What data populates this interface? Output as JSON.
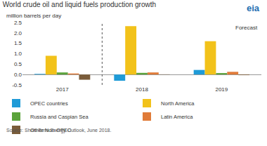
{
  "chart_data": {
    "type": "bar",
    "title": "World crude oil and liquid fuels production growth",
    "subtitle": "million barrels per day",
    "annotations": [
      "Forecast",
      "Source: Short-Term Energy Outlook, June 2018.",
      "eia"
    ],
    "categories": [
      "2017",
      "2018",
      "2019"
    ],
    "series": [
      {
        "name": "OPEC countries",
        "color": "#1f9bd7",
        "values": [
          0.03,
          -0.3,
          0.22
        ]
      },
      {
        "name": "North America",
        "color": "#f2c21a",
        "values": [
          0.9,
          2.32,
          1.6
        ]
      },
      {
        "name": "Russia and Caspian Sea",
        "color": "#5ba33b",
        "values": [
          0.1,
          0.08,
          0.07
        ]
      },
      {
        "name": "Latin America",
        "color": "#e07b39",
        "values": [
          0.05,
          0.1,
          0.13
        ]
      },
      {
        "name": "Other Non-OPEC",
        "color": "#7a5c3a",
        "values": [
          -0.25,
          0.01,
          -0.03
        ]
      }
    ],
    "ylim": [
      -0.5,
      2.5
    ],
    "yticks": [
      -0.5,
      {
        "value": 0,
        "label": "0.0"
      },
      0.5,
      {
        "value": 1,
        "label": "1.0"
      },
      1.5,
      {
        "value": 2,
        "label": "2.0"
      },
      2.5
    ],
    "grid": false,
    "legend": "bottom"
  }
}
